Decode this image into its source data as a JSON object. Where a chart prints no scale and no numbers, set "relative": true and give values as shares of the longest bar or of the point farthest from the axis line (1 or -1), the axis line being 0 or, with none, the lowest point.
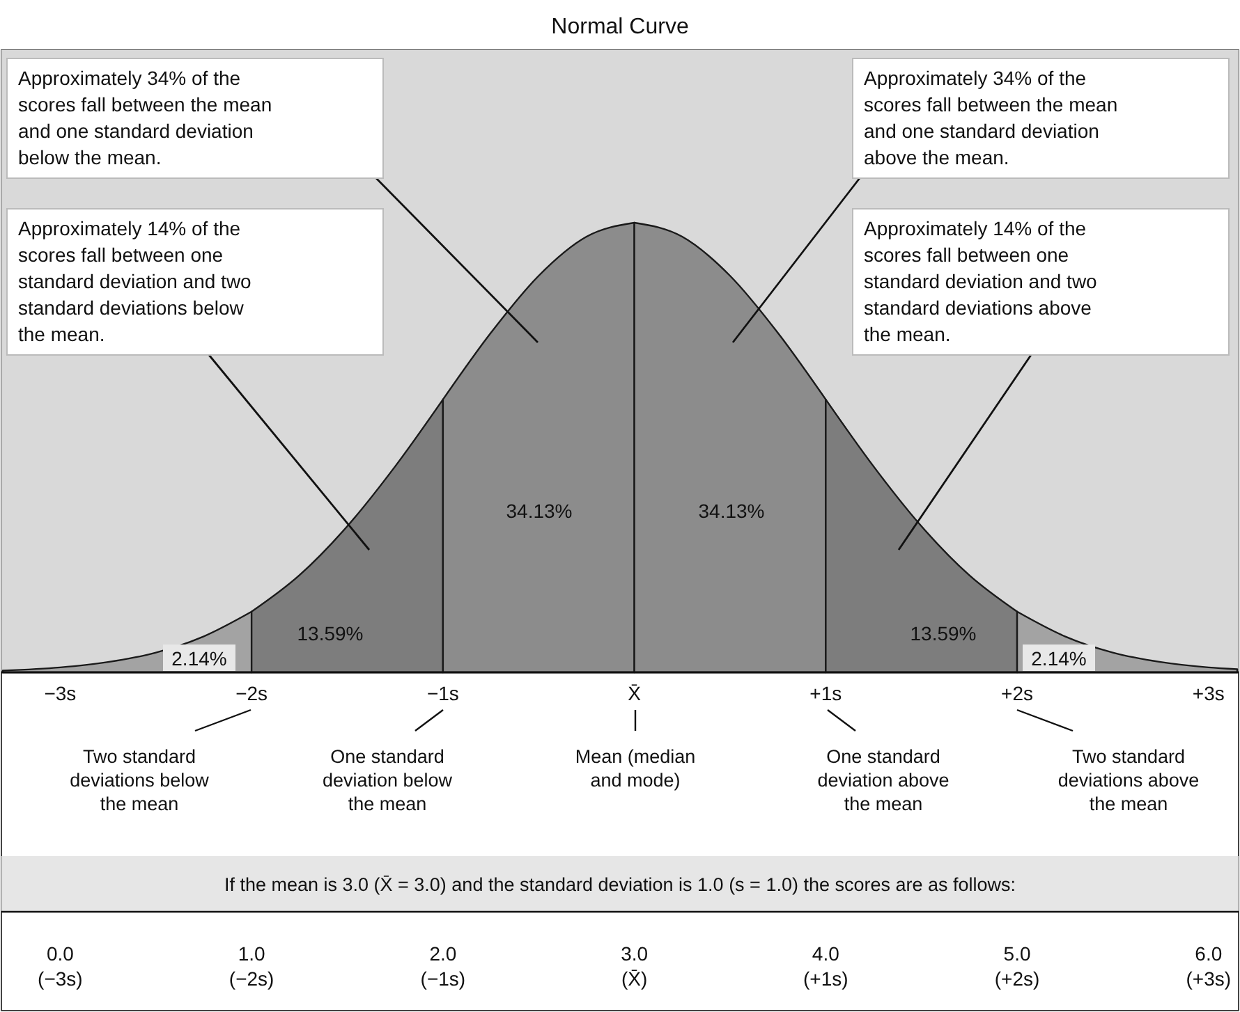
{
  "chart_data": {
    "type": "area",
    "title": "Normal Curve",
    "relative": true,
    "xlim": [
      -3.3,
      3.15
    ],
    "xticks": [
      {
        "value": -3,
        "label": "−3s"
      },
      {
        "value": -2,
        "label": "−2s"
      },
      {
        "value": -1,
        "label": "−1s"
      },
      {
        "value": 0,
        "label": "X̄"
      },
      {
        "value": 1,
        "label": "+1s"
      },
      {
        "value": 2,
        "label": "+2s"
      },
      {
        "value": 3,
        "label": "+3s"
      }
    ],
    "series": [
      {
        "color": "#a3a3a3",
        "x": [
          -3.3,
          -3,
          -2.75,
          -2.5,
          -2.25,
          -2
        ],
        "values": [
          0.004,
          0.011,
          0.023,
          0.044,
          0.08,
          0.135
        ]
      },
      {
        "color": "#7d7d7d",
        "x": [
          -2,
          -1.75,
          -1.5,
          -1.25,
          -1
        ],
        "values": [
          0.135,
          0.216,
          0.325,
          0.458,
          0.607
        ]
      },
      {
        "color": "#8c8c8c",
        "x": [
          -1,
          -0.75,
          -0.5,
          -0.25,
          0
        ],
        "values": [
          0.607,
          0.755,
          0.882,
          0.969,
          1
        ]
      },
      {
        "color": "#8c8c8c",
        "x": [
          0,
          0.25,
          0.5,
          0.75,
          1
        ],
        "values": [
          1,
          0.969,
          0.882,
          0.755,
          0.607
        ]
      },
      {
        "color": "#7d7d7d",
        "x": [
          1,
          1.25,
          1.5,
          1.75,
          2
        ],
        "values": [
          0.607,
          0.458,
          0.325,
          0.216,
          0.135
        ]
      },
      {
        "color": "#a3a3a3",
        "x": [
          2,
          2.25,
          2.5,
          2.75,
          3,
          3.15
        ],
        "values": [
          0.135,
          0.08,
          0.044,
          0.023,
          0.011,
          0.007
        ]
      }
    ],
    "annotations": [
      "Approximately 34% of the\nscores fall between the mean\nand one standard deviation\nbelow the mean.",
      "Approximately 34% of the\nscores fall between the mean\nand one standard deviation\nabove the mean.",
      "Approximately 14% of the\nscores fall between one\nstandard deviation and two\nstandard deviations below\nthe mean.",
      "Approximately 14% of the\nscores fall between one\nstandard deviation and two\nstandard deviations above\nthe mean.",
      "34.13%",
      "34.13%",
      "13.59%",
      "13.59%",
      "2.14%",
      "2.14%",
      "Two standard\ndeviations below\nthe mean",
      "One standard\ndeviation below\nthe mean",
      "Mean (median\nand mode)",
      "One standard\ndeviation above\nthe mean",
      "Two standard\ndeviations above\nthe mean",
      "If the mean is 3.0 (X̄ = 3.0) and the standard deviation is 1.0 (s = 1.0) the scores are as follows:",
      "0.0\n(−3s)",
      "1.0\n(−2s)",
      "2.0\n(−1s)",
      "3.0\n(X̄)",
      "4.0\n(+1s)",
      "5.0\n(+2s)",
      "6.0\n(+3s)"
    ]
  }
}
